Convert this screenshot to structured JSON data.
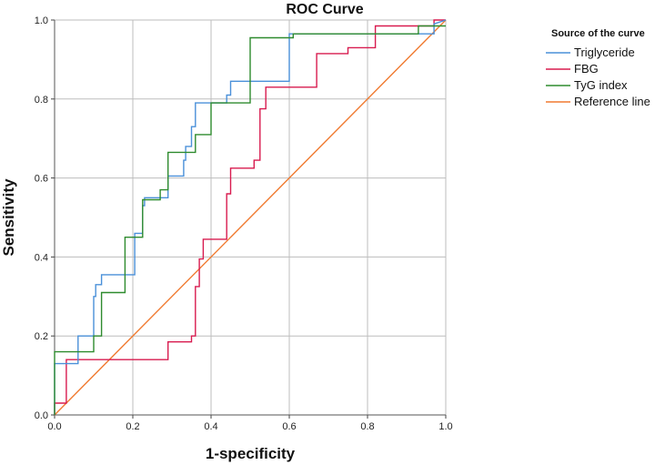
{
  "chart_data": {
    "type": "line",
    "title": "ROC Curve",
    "xlabel": "1-specificity",
    "ylabel": "Sensitivity",
    "xlim": [
      0,
      1
    ],
    "ylim": [
      0,
      1
    ],
    "xticks": [
      "0.0",
      "0.2",
      "0.4",
      "0.6",
      "0.8",
      "1.0"
    ],
    "yticks": [
      "0.0",
      "0.2",
      "0.4",
      "0.6",
      "0.8",
      "1.0"
    ],
    "grid": true,
    "legend": {
      "title": "Source of the curve",
      "position": "top-right",
      "entries": [
        "Triglyceride",
        "FBG",
        "TyG index",
        "Reference line"
      ]
    },
    "series": [
      {
        "name": "Triglyceride",
        "color": "#4a90d9",
        "x": [
          0,
          0,
          0.06,
          0.06,
          0.1,
          0.1,
          0.105,
          0.105,
          0.12,
          0.12,
          0.205,
          0.205,
          0.225,
          0.225,
          0.23,
          0.23,
          0.29,
          0.29,
          0.33,
          0.33,
          0.335,
          0.335,
          0.35,
          0.35,
          0.36,
          0.36,
          0.44,
          0.44,
          0.45,
          0.45,
          0.6,
          0.6,
          0.97,
          0.97,
          1.0
        ],
        "y": [
          0,
          0.13,
          0.13,
          0.2,
          0.2,
          0.3,
          0.3,
          0.33,
          0.33,
          0.355,
          0.355,
          0.46,
          0.46,
          0.53,
          0.53,
          0.55,
          0.55,
          0.605,
          0.605,
          0.645,
          0.645,
          0.68,
          0.68,
          0.73,
          0.73,
          0.79,
          0.79,
          0.81,
          0.81,
          0.845,
          0.845,
          0.965,
          0.965,
          0.99,
          1.0
        ]
      },
      {
        "name": "FBG",
        "color": "#d81b4f",
        "x": [
          0,
          0,
          0.03,
          0.03,
          0.29,
          0.29,
          0.35,
          0.35,
          0.36,
          0.36,
          0.37,
          0.37,
          0.38,
          0.38,
          0.44,
          0.44,
          0.45,
          0.45,
          0.51,
          0.51,
          0.525,
          0.525,
          0.54,
          0.54,
          0.67,
          0.67,
          0.75,
          0.75,
          0.82,
          0.82,
          0.97,
          0.97,
          1.0
        ],
        "y": [
          0,
          0.03,
          0.03,
          0.14,
          0.14,
          0.185,
          0.185,
          0.2,
          0.2,
          0.325,
          0.325,
          0.395,
          0.395,
          0.445,
          0.445,
          0.56,
          0.56,
          0.625,
          0.625,
          0.645,
          0.645,
          0.775,
          0.775,
          0.83,
          0.83,
          0.915,
          0.915,
          0.93,
          0.93,
          0.985,
          0.985,
          1.0,
          1.0
        ]
      },
      {
        "name": "TyG index",
        "color": "#2e8b2e",
        "x": [
          0,
          0,
          0.1,
          0.1,
          0.12,
          0.12,
          0.18,
          0.18,
          0.225,
          0.225,
          0.27,
          0.27,
          0.29,
          0.29,
          0.36,
          0.36,
          0.4,
          0.4,
          0.5,
          0.5,
          0.61,
          0.61,
          0.93,
          0.93,
          1.0
        ],
        "y": [
          0,
          0.16,
          0.16,
          0.2,
          0.2,
          0.31,
          0.31,
          0.45,
          0.45,
          0.545,
          0.545,
          0.57,
          0.57,
          0.665,
          0.665,
          0.71,
          0.71,
          0.79,
          0.79,
          0.955,
          0.955,
          0.965,
          0.965,
          0.985,
          0.985
        ]
      },
      {
        "name": "Reference line",
        "color": "#f07a30",
        "x": [
          0,
          1
        ],
        "y": [
          0,
          1
        ]
      }
    ]
  }
}
